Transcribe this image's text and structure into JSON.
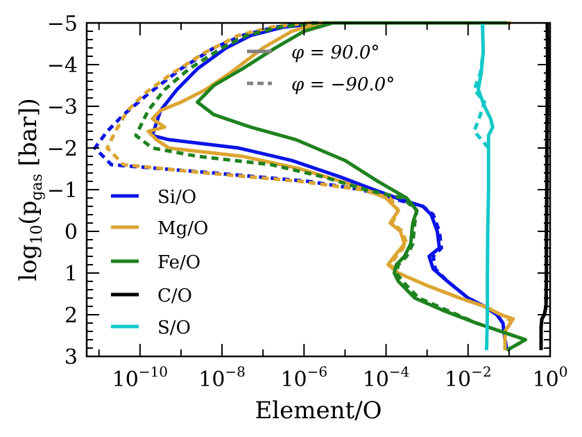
{
  "chart_data": {
    "type": "line",
    "title": "",
    "xlabel": "Element/O",
    "ylabel_main": "log",
    "ylabel_sub": "10",
    "ylabel_paren": "(p",
    "ylabel_gas": "gas",
    "ylabel_unit": " [bar])",
    "x_scale": "log",
    "xlim_log10": [
      -11.3,
      0
    ],
    "ylim": [
      3,
      -5
    ],
    "x_ticks": [
      {
        "base": "10",
        "exp": "−10",
        "value": -10
      },
      {
        "base": "10",
        "exp": "−8",
        "value": -8
      },
      {
        "base": "10",
        "exp": "−6",
        "value": -6
      },
      {
        "base": "10",
        "exp": "−4",
        "value": -4
      },
      {
        "base": "10",
        "exp": "−2",
        "value": -2
      },
      {
        "base": "10",
        "exp": "0",
        "value": 0
      }
    ],
    "y_ticks": [
      "−5",
      "−4",
      "−3",
      "−2",
      "−1",
      "0",
      "1",
      "2",
      "3"
    ],
    "y_tick_values": [
      -5,
      -4,
      -3,
      -2,
      -1,
      0,
      1,
      2,
      3
    ],
    "legend_series": [
      {
        "label": "Si/O",
        "color": "#0a14e6"
      },
      {
        "label": "Mg/O",
        "color": "#dca532"
      },
      {
        "label": "Fe/O",
        "color": "#1e821e"
      },
      {
        "label": "C/O",
        "color": "#000000"
      },
      {
        "label": "S/O",
        "color": "#14c8c8"
      }
    ],
    "legend_styles": [
      {
        "label": "φ = 90.0°",
        "style": "solid"
      },
      {
        "label": "φ = −90.0°",
        "style": "dashed"
      }
    ],
    "series": [
      {
        "name": "Si/O",
        "phi": "90.0",
        "color": "#0a14e6",
        "dash": false,
        "points": [
          [
            -1.05,
            -5
          ],
          [
            -5.5,
            -5
          ],
          [
            -6.5,
            -4.9
          ],
          [
            -7.3,
            -4.7
          ],
          [
            -7.9,
            -4.4
          ],
          [
            -8.6,
            -3.9
          ],
          [
            -9.1,
            -3.4
          ],
          [
            -9.5,
            -2.9
          ],
          [
            -9.6,
            -2.6
          ],
          [
            -9.7,
            -2.3
          ],
          [
            -9.3,
            -2.2
          ],
          [
            -7.6,
            -2.0
          ],
          [
            -6.3,
            -1.7
          ],
          [
            -5.1,
            -1.3
          ],
          [
            -4.3,
            -1.0
          ],
          [
            -3.6,
            -0.75
          ],
          [
            -3.1,
            -0.6
          ],
          [
            -2.9,
            -0.4
          ],
          [
            -2.75,
            0
          ],
          [
            -2.7,
            0.4
          ],
          [
            -2.95,
            0.6
          ],
          [
            -2.85,
            0.9
          ],
          [
            -2.5,
            1.2
          ],
          [
            -2.0,
            1.6
          ],
          [
            -1.6,
            1.8
          ],
          [
            -1.3,
            2.0
          ],
          [
            -1.15,
            2.2
          ],
          [
            -1.1,
            2.6
          ],
          [
            -1.05,
            2.85
          ]
        ]
      },
      {
        "name": "Si/O",
        "phi": "-90.0",
        "color": "#0a14e6",
        "dash": true,
        "points": [
          [
            -1.05,
            -5
          ],
          [
            -5.8,
            -5
          ],
          [
            -6.7,
            -4.9
          ],
          [
            -7.5,
            -4.7
          ],
          [
            -8.2,
            -4.4
          ],
          [
            -9.0,
            -3.9
          ],
          [
            -9.8,
            -3.3
          ],
          [
            -10.4,
            -2.8
          ],
          [
            -10.8,
            -2.4
          ],
          [
            -11.1,
            -2.0
          ],
          [
            -10.7,
            -1.6
          ],
          [
            -8.2,
            -1.4
          ],
          [
            -5.9,
            -1.2
          ],
          [
            -4.6,
            -1.0
          ],
          [
            -3.7,
            -0.75
          ],
          [
            -3.1,
            -0.6
          ],
          [
            -2.85,
            -0.4
          ],
          [
            -2.7,
            0
          ],
          [
            -2.65,
            0.4
          ],
          [
            -2.85,
            0.6
          ],
          [
            -2.8,
            0.9
          ],
          [
            -2.5,
            1.2
          ],
          [
            -2.0,
            1.6
          ],
          [
            -1.6,
            1.8
          ],
          [
            -1.3,
            2.0
          ],
          [
            -1.15,
            2.2
          ],
          [
            -1.1,
            2.6
          ],
          [
            -1.05,
            2.85
          ]
        ]
      },
      {
        "name": "Mg/O",
        "phi": "90.0",
        "color": "#dca532",
        "dash": false,
        "points": [
          [
            -0.95,
            -5
          ],
          [
            -5.6,
            -5
          ],
          [
            -6.3,
            -4.8
          ],
          [
            -7.0,
            -4.4
          ],
          [
            -7.8,
            -3.8
          ],
          [
            -8.4,
            -3.4
          ],
          [
            -9.0,
            -3.1
          ],
          [
            -9.5,
            -2.9
          ],
          [
            -9.7,
            -2.7
          ],
          [
            -9.4,
            -2.5
          ],
          [
            -9.8,
            -2.4
          ],
          [
            -9.6,
            -2.2
          ],
          [
            -9.3,
            -2.0
          ],
          [
            -7.5,
            -1.8
          ],
          [
            -6.1,
            -1.5
          ],
          [
            -5.1,
            -1.2
          ],
          [
            -4.5,
            -1.0
          ],
          [
            -4.0,
            -0.8
          ],
          [
            -3.7,
            -0.5
          ],
          [
            -3.9,
            -0.2
          ],
          [
            -3.65,
            0
          ],
          [
            -3.55,
            0.3
          ],
          [
            -3.8,
            0.6
          ],
          [
            -3.95,
            0.8
          ],
          [
            -3.7,
            1.0
          ],
          [
            -3.0,
            1.3
          ],
          [
            -2.2,
            1.6
          ],
          [
            -1.6,
            1.8
          ],
          [
            -1.2,
            2.0
          ],
          [
            -0.9,
            2.1
          ],
          [
            -1.1,
            2.4
          ],
          [
            -1.1,
            2.85
          ]
        ]
      },
      {
        "name": "Mg/O",
        "phi": "-90.0",
        "color": "#dca532",
        "dash": true,
        "points": [
          [
            -0.95,
            -5
          ],
          [
            -5.9,
            -5
          ],
          [
            -6.8,
            -4.9
          ],
          [
            -7.6,
            -4.7
          ],
          [
            -8.4,
            -4.3
          ],
          [
            -9.2,
            -3.8
          ],
          [
            -9.9,
            -3.3
          ],
          [
            -10.3,
            -2.9
          ],
          [
            -10.6,
            -2.4
          ],
          [
            -10.8,
            -2.0
          ],
          [
            -10.4,
            -1.6
          ],
          [
            -8.4,
            -1.4
          ],
          [
            -6.1,
            -1.2
          ],
          [
            -4.6,
            -1.0
          ],
          [
            -3.9,
            -0.8
          ],
          [
            -3.7,
            -0.5
          ],
          [
            -3.85,
            -0.2
          ],
          [
            -3.6,
            0
          ],
          [
            -3.5,
            0.3
          ],
          [
            -3.75,
            0.6
          ],
          [
            -3.9,
            0.8
          ],
          [
            -3.7,
            1.0
          ],
          [
            -3.0,
            1.3
          ],
          [
            -2.2,
            1.6
          ],
          [
            -1.6,
            1.8
          ],
          [
            -1.2,
            2.0
          ],
          [
            -0.95,
            2.15
          ],
          [
            -1.1,
            2.4
          ],
          [
            -1.1,
            2.85
          ]
        ]
      },
      {
        "name": "Fe/O",
        "phi": "90.0",
        "color": "#1e821e",
        "dash": false,
        "points": [
          [
            -1.05,
            -5
          ],
          [
            -5.3,
            -5
          ],
          [
            -6.0,
            -4.8
          ],
          [
            -6.7,
            -4.4
          ],
          [
            -7.5,
            -3.9
          ],
          [
            -8.2,
            -3.5
          ],
          [
            -8.6,
            -3.1
          ],
          [
            -8.2,
            -2.8
          ],
          [
            -7.3,
            -2.5
          ],
          [
            -6.2,
            -2.2
          ],
          [
            -5.0,
            -1.7
          ],
          [
            -4.2,
            -1.2
          ],
          [
            -3.5,
            -0.8
          ],
          [
            -3.25,
            -0.5
          ],
          [
            -3.35,
            -0.2
          ],
          [
            -3.4,
            0.3
          ],
          [
            -3.55,
            0.6
          ],
          [
            -3.75,
            0.8
          ],
          [
            -3.8,
            1.0
          ],
          [
            -3.7,
            1.2
          ],
          [
            -3.3,
            1.6
          ],
          [
            -2.6,
            1.9
          ],
          [
            -1.8,
            2.2
          ],
          [
            -1.2,
            2.4
          ],
          [
            -0.6,
            2.6
          ],
          [
            -1.05,
            2.85
          ]
        ]
      },
      {
        "name": "Fe/O",
        "phi": "-90.0",
        "color": "#1e821e",
        "dash": true,
        "points": [
          [
            -1.05,
            -5
          ],
          [
            -5.7,
            -5
          ],
          [
            -6.6,
            -4.9
          ],
          [
            -7.4,
            -4.7
          ],
          [
            -8.0,
            -4.4
          ],
          [
            -8.8,
            -3.9
          ],
          [
            -9.4,
            -3.4
          ],
          [
            -9.8,
            -2.9
          ],
          [
            -10.1,
            -2.3
          ],
          [
            -9.7,
            -2.0
          ],
          [
            -8.6,
            -1.8
          ],
          [
            -6.8,
            -1.6
          ],
          [
            -5.5,
            -1.3
          ],
          [
            -4.5,
            -1.0
          ],
          [
            -3.6,
            -0.8
          ],
          [
            -3.25,
            -0.5
          ],
          [
            -3.3,
            -0.2
          ],
          [
            -3.35,
            0.3
          ],
          [
            -3.5,
            0.6
          ],
          [
            -3.7,
            0.8
          ],
          [
            -3.75,
            1.0
          ],
          [
            -3.6,
            1.2
          ],
          [
            -3.2,
            1.6
          ],
          [
            -2.5,
            1.9
          ],
          [
            -1.8,
            2.2
          ],
          [
            -1.2,
            2.4
          ],
          [
            -0.6,
            2.6
          ],
          [
            -1.05,
            2.85
          ]
        ]
      },
      {
        "name": "C/O",
        "phi": "90.0",
        "color": "#000000",
        "dash": false,
        "points": [
          [
            -0.07,
            -5
          ],
          [
            -0.06,
            -4.0
          ],
          [
            -0.07,
            -3.0
          ],
          [
            -0.08,
            -2.0
          ],
          [
            -0.08,
            -1.0
          ],
          [
            -0.09,
            0
          ],
          [
            -0.09,
            1.0
          ],
          [
            -0.1,
            1.8
          ],
          [
            -0.14,
            2.0
          ],
          [
            -0.2,
            2.1
          ],
          [
            -0.22,
            2.3
          ],
          [
            -0.22,
            2.85
          ]
        ]
      },
      {
        "name": "C/O",
        "phi": "-90.0",
        "color": "#000000",
        "dash": true,
        "points": [
          [
            -0.07,
            -5
          ],
          [
            -0.06,
            -4.0
          ],
          [
            -0.07,
            -3.0
          ],
          [
            -0.08,
            -2.0
          ],
          [
            -0.08,
            -1.0
          ],
          [
            -0.09,
            0
          ],
          [
            -0.09,
            1.0
          ],
          [
            -0.1,
            1.8
          ],
          [
            -0.14,
            2.0
          ],
          [
            -0.2,
            2.1
          ],
          [
            -0.22,
            2.3
          ],
          [
            -0.22,
            2.85
          ]
        ]
      },
      {
        "name": "S/O",
        "phi": "90.0",
        "color": "#14c8c8",
        "dash": false,
        "points": [
          [
            -1.65,
            -5
          ],
          [
            -1.63,
            -4.3
          ],
          [
            -1.68,
            -3.8
          ],
          [
            -1.75,
            -3.4
          ],
          [
            -1.6,
            -3.0
          ],
          [
            -1.45,
            -2.7
          ],
          [
            -1.4,
            -2.5
          ],
          [
            -1.5,
            -2.3
          ],
          [
            -1.5,
            -1.0
          ],
          [
            -1.52,
            0
          ],
          [
            -1.53,
            1.0
          ],
          [
            -1.53,
            2.0
          ],
          [
            -1.55,
            2.85
          ]
        ]
      },
      {
        "name": "S/O",
        "phi": "-90.0",
        "color": "#14c8c8",
        "dash": true,
        "points": [
          [
            -1.65,
            -5
          ],
          [
            -1.63,
            -4.3
          ],
          [
            -1.7,
            -3.8
          ],
          [
            -1.85,
            -3.4
          ],
          [
            -1.6,
            -3.1
          ],
          [
            -1.7,
            -2.8
          ],
          [
            -1.85,
            -2.4
          ],
          [
            -1.5,
            -2.0
          ]
        ]
      }
    ]
  }
}
